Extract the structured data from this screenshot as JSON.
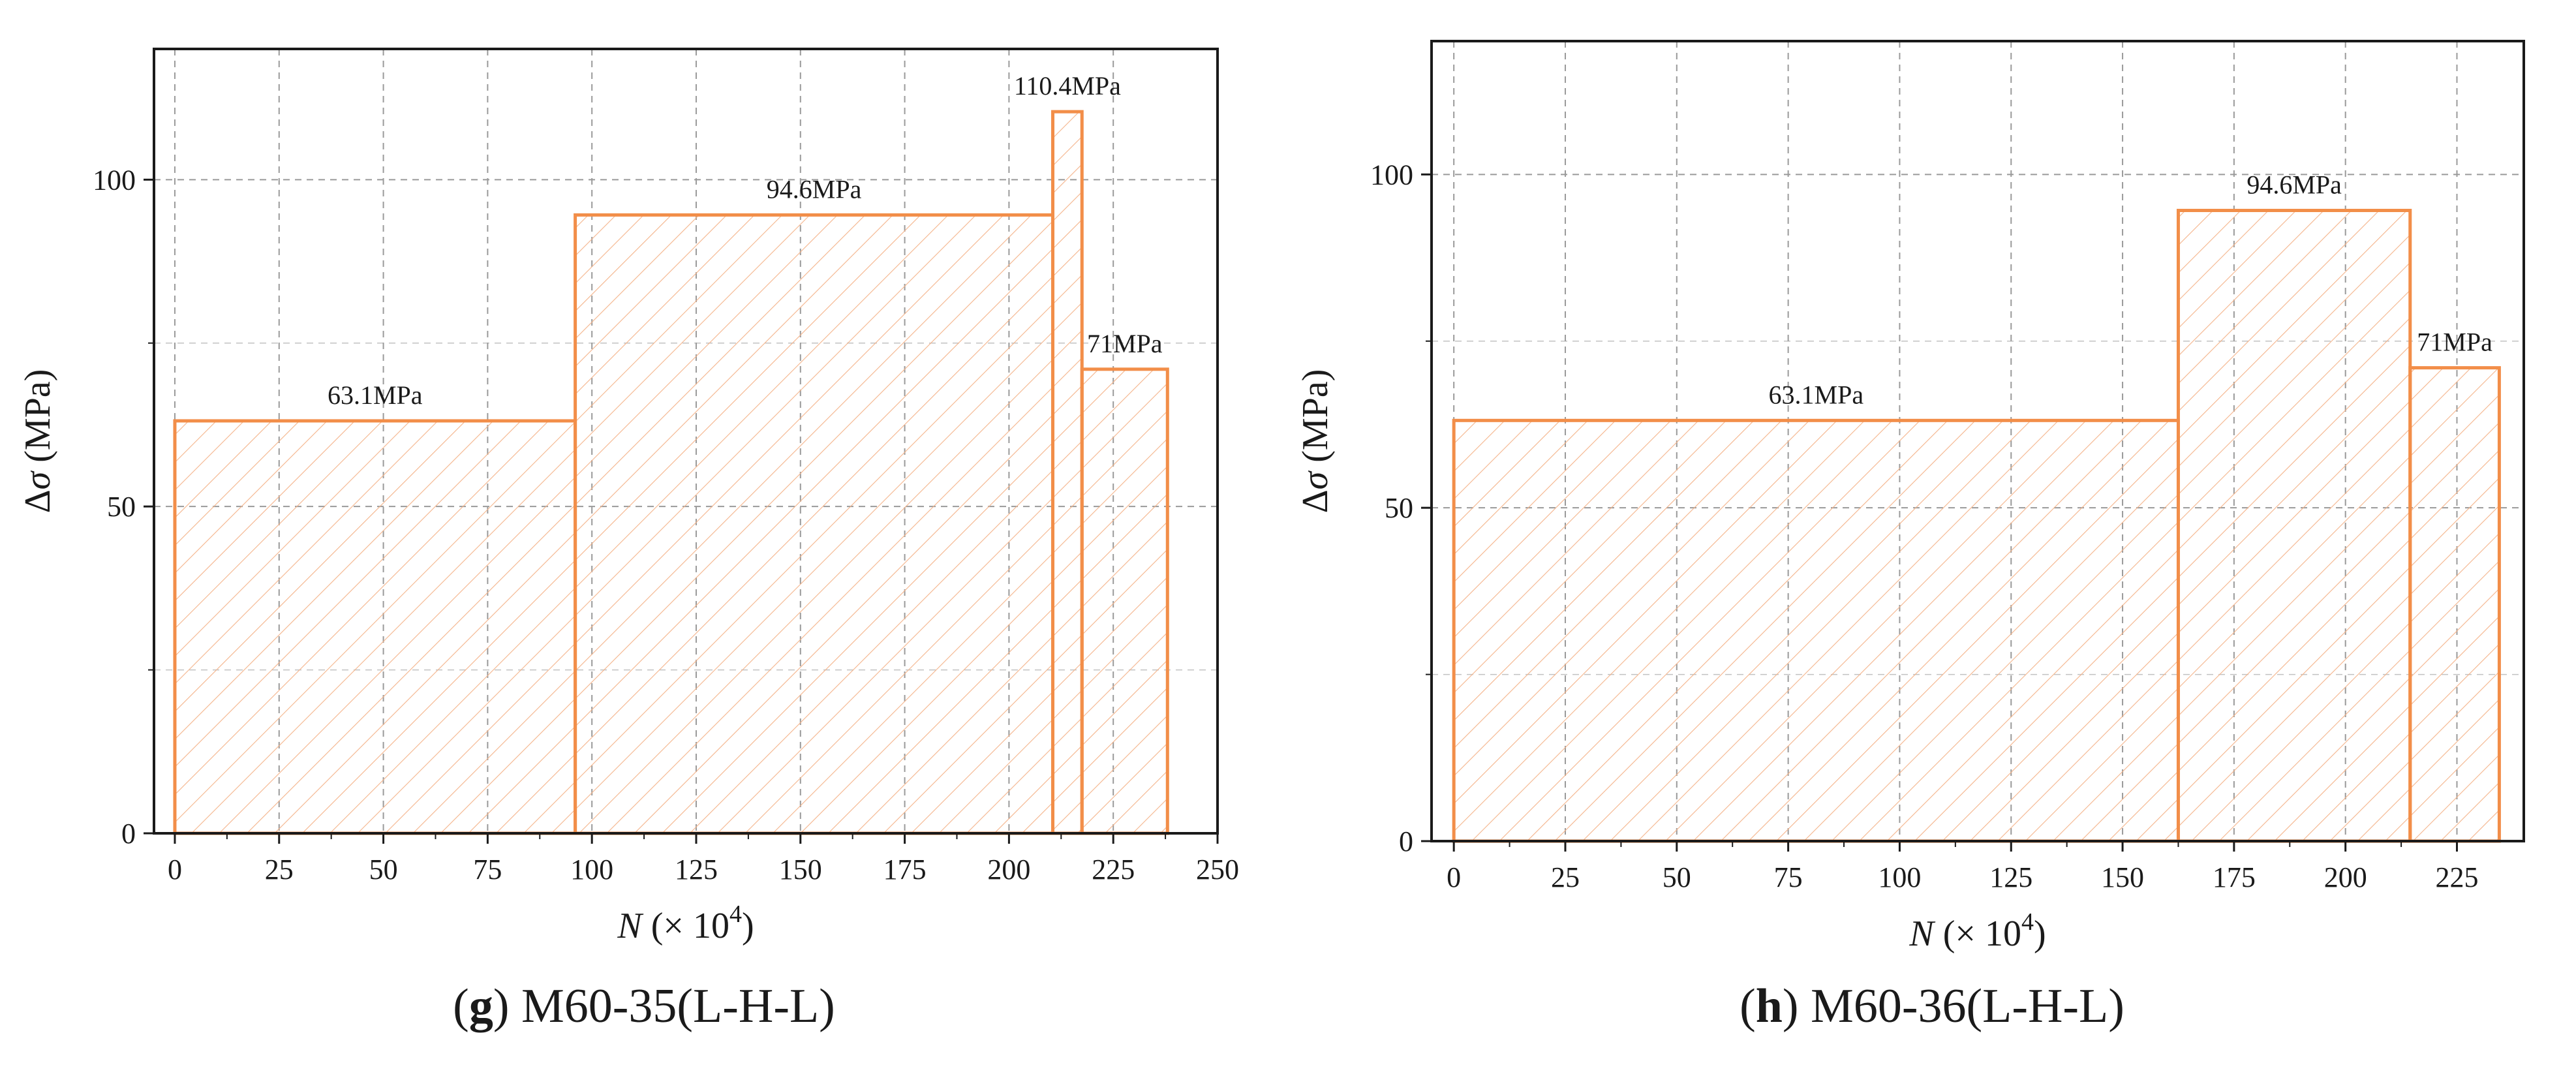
{
  "colors": {
    "bar_stroke": "#F28E49",
    "hatch": "#F4B48B",
    "axis": "#1a1a1a",
    "grid": "#9a9a9a",
    "text": "#1a1a1a"
  },
  "chart_data": [
    {
      "id": "g",
      "type": "bar",
      "subtype": "step-histogram",
      "caption_letter": "g",
      "caption_text": "M60-35(L-H-L)",
      "xlabel_var": "N",
      "xlabel_rest": " (× 10",
      "xlabel_exp": "4",
      "xlabel_close": ")",
      "ylabel_prefix": "Δ",
      "ylabel_var": "σ",
      "ylabel_rest": " (MPa)",
      "xlim": [
        -5,
        250
      ],
      "ylim": [
        0,
        120
      ],
      "xticks": [
        0,
        25,
        50,
        75,
        100,
        125,
        150,
        175,
        200,
        225,
        250
      ],
      "xtick_labels": [
        "0",
        "25",
        "50",
        "75",
        "100",
        "125",
        "150",
        "175",
        "200",
        "225",
        "250"
      ],
      "yticks": [
        0,
        50,
        100
      ],
      "ytick_labels": [
        "0",
        "50",
        "100"
      ],
      "grid": true,
      "bars": [
        {
          "x0": 0,
          "x1": 96,
          "value": 63.1,
          "label": "63.1MPa"
        },
        {
          "x0": 96,
          "x1": 210.5,
          "value": 94.6,
          "label": "94.6MPa"
        },
        {
          "x0": 210.5,
          "x1": 217.5,
          "value": 110.4,
          "label": "110.4MPa"
        },
        {
          "x0": 217.5,
          "x1": 238,
          "value": 71,
          "label": "71MPa"
        }
      ]
    },
    {
      "id": "h",
      "type": "bar",
      "subtype": "step-histogram",
      "caption_letter": "h",
      "caption_text": "M60-36(L-H-L)",
      "xlabel_var": "N",
      "xlabel_rest": " (× 10",
      "xlabel_exp": "4",
      "xlabel_close": ")",
      "ylabel_prefix": "Δ",
      "ylabel_var": "σ",
      "ylabel_rest": " (MPa)",
      "xlim": [
        -5,
        240
      ],
      "ylim": [
        0,
        120
      ],
      "xticks": [
        0,
        25,
        50,
        75,
        100,
        125,
        150,
        175,
        200,
        225
      ],
      "xtick_labels": [
        "0",
        "25",
        "50",
        "75",
        "100",
        "125",
        "150",
        "175",
        "200",
        "225"
      ],
      "yticks": [
        0,
        50,
        100
      ],
      "ytick_labels": [
        "0",
        "50",
        "100"
      ],
      "grid": true,
      "bars": [
        {
          "x0": 0,
          "x1": 162.5,
          "value": 63.1,
          "label": "63.1MPa"
        },
        {
          "x0": 162.5,
          "x1": 214.5,
          "value": 94.6,
          "label": "94.6MPa"
        },
        {
          "x0": 214.5,
          "x1": 234.5,
          "value": 71,
          "label": "71MPa"
        }
      ]
    }
  ]
}
